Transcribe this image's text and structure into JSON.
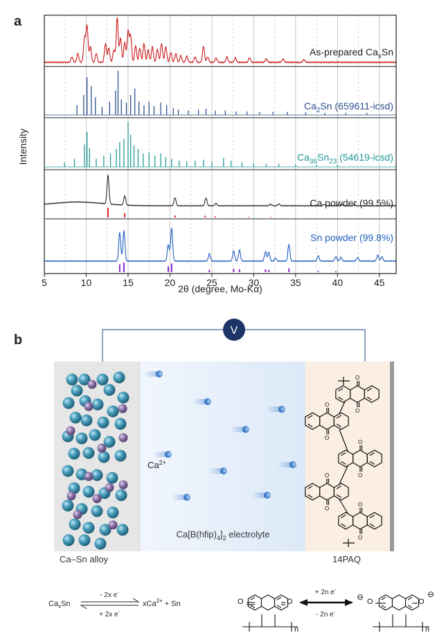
{
  "panel_a": {
    "letter": "a",
    "chart_data": {
      "type": "line",
      "xlabel": "2θ (degree, Mo-Kα)",
      "ylabel": "Intensity",
      "xlim": [
        5,
        47
      ],
      "xticks": [
        5,
        10,
        15,
        20,
        25,
        30,
        35,
        40,
        45
      ],
      "grid": "vertical gridlines every 2.5 degrees (solid at integers of 5, dashed between)",
      "series": [
        {
          "name": "As-prepared CaxSn",
          "label_main": "As-prepared Ca",
          "label_sub": "x",
          "label_tail": "Sn",
          "color": "#cc1b1b",
          "kind": "pattern",
          "peaks": [
            {
              "x": 8.3,
              "h": 0.12
            },
            {
              "x": 9.0,
              "h": 0.2
            },
            {
              "x": 9.8,
              "h": 0.55
            },
            {
              "x": 10.1,
              "h": 0.82
            },
            {
              "x": 10.5,
              "h": 0.35
            },
            {
              "x": 11.2,
              "h": 0.2
            },
            {
              "x": 12.3,
              "h": 0.42
            },
            {
              "x": 12.7,
              "h": 0.32
            },
            {
              "x": 13.3,
              "h": 0.28
            },
            {
              "x": 13.7,
              "h": 1.0
            },
            {
              "x": 14.1,
              "h": 0.55
            },
            {
              "x": 14.6,
              "h": 0.45
            },
            {
              "x": 15.0,
              "h": 0.7
            },
            {
              "x": 15.3,
              "h": 0.6
            },
            {
              "x": 15.9,
              "h": 0.38
            },
            {
              "x": 16.4,
              "h": 0.32
            },
            {
              "x": 16.9,
              "h": 0.42
            },
            {
              "x": 17.4,
              "h": 0.28
            },
            {
              "x": 17.9,
              "h": 0.35
            },
            {
              "x": 18.5,
              "h": 0.3
            },
            {
              "x": 19.0,
              "h": 0.42
            },
            {
              "x": 19.5,
              "h": 0.35
            },
            {
              "x": 20.1,
              "h": 0.22
            },
            {
              "x": 20.7,
              "h": 0.2
            },
            {
              "x": 21.3,
              "h": 0.15
            },
            {
              "x": 22.0,
              "h": 0.14
            },
            {
              "x": 23.0,
              "h": 0.12
            },
            {
              "x": 24.0,
              "h": 0.36
            },
            {
              "x": 24.5,
              "h": 0.12
            },
            {
              "x": 25.5,
              "h": 0.1
            },
            {
              "x": 26.8,
              "h": 0.12
            },
            {
              "x": 27.8,
              "h": 0.1
            },
            {
              "x": 29.5,
              "h": 0.1
            },
            {
              "x": 31.5,
              "h": 0.08
            },
            {
              "x": 33.5,
              "h": 0.08
            },
            {
              "x": 36.0,
              "h": 0.06
            }
          ]
        },
        {
          "name": "Ca2Sn (659611-icsd)",
          "label_main": "Ca",
          "label_sub": "2",
          "label_tail": "Sn (659611-icsd)",
          "color": "#2b4f8f",
          "kind": "sticks",
          "peaks": [
            {
              "x": 8.9,
              "h": 0.22
            },
            {
              "x": 9.7,
              "h": 0.45
            },
            {
              "x": 10.1,
              "h": 0.85
            },
            {
              "x": 10.6,
              "h": 0.65
            },
            {
              "x": 11.1,
              "h": 0.4
            },
            {
              "x": 11.9,
              "h": 0.18
            },
            {
              "x": 12.8,
              "h": 0.3
            },
            {
              "x": 13.5,
              "h": 0.55
            },
            {
              "x": 13.8,
              "h": 1.0
            },
            {
              "x": 14.2,
              "h": 0.35
            },
            {
              "x": 14.8,
              "h": 0.28
            },
            {
              "x": 15.3,
              "h": 0.45
            },
            {
              "x": 15.8,
              "h": 0.6
            },
            {
              "x": 16.3,
              "h": 0.3
            },
            {
              "x": 16.9,
              "h": 0.22
            },
            {
              "x": 17.5,
              "h": 0.3
            },
            {
              "x": 18.1,
              "h": 0.2
            },
            {
              "x": 18.9,
              "h": 0.28
            },
            {
              "x": 19.6,
              "h": 0.22
            },
            {
              "x": 20.4,
              "h": 0.15
            },
            {
              "x": 21.0,
              "h": 0.12
            },
            {
              "x": 22.2,
              "h": 0.1
            },
            {
              "x": 23.4,
              "h": 0.12
            },
            {
              "x": 24.3,
              "h": 0.14
            },
            {
              "x": 25.4,
              "h": 0.1
            },
            {
              "x": 26.6,
              "h": 0.1
            },
            {
              "x": 27.9,
              "h": 0.08
            },
            {
              "x": 29.2,
              "h": 0.08
            },
            {
              "x": 30.7,
              "h": 0.07
            },
            {
              "x": 32.3,
              "h": 0.07
            },
            {
              "x": 34.0,
              "h": 0.07
            },
            {
              "x": 36.2,
              "h": 0.06
            },
            {
              "x": 38.5,
              "h": 0.05
            },
            {
              "x": 41.0,
              "h": 0.05
            },
            {
              "x": 43.5,
              "h": 0.05
            }
          ]
        },
        {
          "name": "Ca36Sn23 (54619-icsd)",
          "label_main": "Ca",
          "label_sub": "36",
          "label_tail": "Sn",
          "label_sub2": "23",
          "label_tail2": " (54619-icsd)",
          "color": "#1f9a96",
          "kind": "sticks",
          "peaks": [
            {
              "x": 7.4,
              "h": 0.1
            },
            {
              "x": 8.6,
              "h": 0.18
            },
            {
              "x": 9.8,
              "h": 0.5
            },
            {
              "x": 10.1,
              "h": 0.78
            },
            {
              "x": 10.4,
              "h": 0.42
            },
            {
              "x": 11.2,
              "h": 0.18
            },
            {
              "x": 12.1,
              "h": 0.25
            },
            {
              "x": 12.9,
              "h": 0.3
            },
            {
              "x": 13.6,
              "h": 0.4
            },
            {
              "x": 14.0,
              "h": 0.55
            },
            {
              "x": 14.5,
              "h": 0.62
            },
            {
              "x": 15.0,
              "h": 1.0
            },
            {
              "x": 15.3,
              "h": 0.72
            },
            {
              "x": 15.7,
              "h": 0.48
            },
            {
              "x": 16.2,
              "h": 0.4
            },
            {
              "x": 16.8,
              "h": 0.3
            },
            {
              "x": 17.5,
              "h": 0.32
            },
            {
              "x": 18.2,
              "h": 0.25
            },
            {
              "x": 18.9,
              "h": 0.3
            },
            {
              "x": 19.5,
              "h": 0.22
            },
            {
              "x": 20.2,
              "h": 0.18
            },
            {
              "x": 21.1,
              "h": 0.14
            },
            {
              "x": 22.0,
              "h": 0.12
            },
            {
              "x": 23.0,
              "h": 0.14
            },
            {
              "x": 24.0,
              "h": 0.16
            },
            {
              "x": 25.0,
              "h": 0.12
            },
            {
              "x": 26.4,
              "h": 0.2
            },
            {
              "x": 27.3,
              "h": 0.14
            },
            {
              "x": 28.6,
              "h": 0.1
            },
            {
              "x": 30.0,
              "h": 0.08
            },
            {
              "x": 31.5,
              "h": 0.07
            },
            {
              "x": 33.0,
              "h": 0.07
            },
            {
              "x": 35.0,
              "h": 0.06
            },
            {
              "x": 37.5,
              "h": 0.05
            },
            {
              "x": 40.0,
              "h": 0.05
            }
          ]
        },
        {
          "name": "Ca powder (99.5%)",
          "label_main": "Ca powder (99.5%)",
          "color": "#2a2a2a",
          "kind": "pattern",
          "baseline_hump": true,
          "peaks": [
            {
              "x": 12.6,
              "h": 0.92
            },
            {
              "x": 14.6,
              "h": 0.3
            },
            {
              "x": 20.6,
              "h": 0.26
            },
            {
              "x": 24.3,
              "h": 0.25
            },
            {
              "x": 25.5,
              "h": 0.08
            },
            {
              "x": 32.0,
              "h": 0.05
            },
            {
              "x": 33.0,
              "h": 0.06
            },
            {
              "x": 38.4,
              "h": 0.04
            },
            {
              "x": 40.5,
              "h": 0.04
            },
            {
              "x": 42.0,
              "h": 0.04
            }
          ],
          "ref_color": "#e0201f",
          "ref_sticks": [
            {
              "x": 12.6,
              "h": 1.0
            },
            {
              "x": 14.6,
              "h": 0.45
            },
            {
              "x": 20.6,
              "h": 0.2
            },
            {
              "x": 24.2,
              "h": 0.18
            },
            {
              "x": 25.4,
              "h": 0.12
            },
            {
              "x": 29.4,
              "h": 0.06
            },
            {
              "x": 32.0,
              "h": 0.06
            }
          ]
        },
        {
          "name": "Sn powder (99.8%)",
          "label_main": "Sn powder (99.8%)",
          "color": "#1f5fbf",
          "kind": "pattern",
          "peaks": [
            {
              "x": 14.0,
              "h": 0.78
            },
            {
              "x": 14.5,
              "h": 0.82
            },
            {
              "x": 19.8,
              "h": 0.45
            },
            {
              "x": 20.2,
              "h": 0.9
            },
            {
              "x": 24.7,
              "h": 0.2
            },
            {
              "x": 27.6,
              "h": 0.28
            },
            {
              "x": 28.3,
              "h": 0.3
            },
            {
              "x": 31.4,
              "h": 0.26
            },
            {
              "x": 31.8,
              "h": 0.24
            },
            {
              "x": 32.6,
              "h": 0.08
            },
            {
              "x": 34.2,
              "h": 0.45
            },
            {
              "x": 37.7,
              "h": 0.14
            },
            {
              "x": 39.8,
              "h": 0.12
            },
            {
              "x": 40.4,
              "h": 0.1
            },
            {
              "x": 42.4,
              "h": 0.1
            },
            {
              "x": 44.8,
              "h": 0.16
            },
            {
              "x": 45.3,
              "h": 0.12
            }
          ],
          "ref_color": "#8a2ad0",
          "ref_sticks": [
            {
              "x": 14.0,
              "h": 0.8
            },
            {
              "x": 14.5,
              "h": 1.0
            },
            {
              "x": 19.8,
              "h": 0.6
            },
            {
              "x": 20.2,
              "h": 0.9
            },
            {
              "x": 24.7,
              "h": 0.25
            },
            {
              "x": 27.6,
              "h": 0.35
            },
            {
              "x": 28.3,
              "h": 0.3
            },
            {
              "x": 31.4,
              "h": 0.3
            },
            {
              "x": 31.8,
              "h": 0.25
            },
            {
              "x": 34.2,
              "h": 0.4
            },
            {
              "x": 37.7,
              "h": 0.12
            },
            {
              "x": 39.8,
              "h": 0.1
            }
          ]
        }
      ]
    }
  },
  "panel_b": {
    "letter": "b",
    "voltmeter_label": "V",
    "ion_label": "Ca",
    "ion_charge": "2+",
    "electrolyte_label_prefix": "Ca[B(hfip)",
    "electrolyte_label_sub": "4",
    "electrolyte_label_suffix": "]",
    "electrolyte_label_sub2": "2",
    "electrolyte_label_tail": " electrolyte",
    "anode_label": "Ca–Sn alloy",
    "cathode_label": "14PAQ",
    "colors": {
      "anode_bg": "#e6e6e6",
      "electrolyte_bg": "#eaf2fc",
      "cathode_bg": "#fbeee2",
      "ca_atom": "#3c8ca8",
      "sn_atom": "#8a74a6",
      "ion": "#3a78c8",
      "wire": "#5e7ea8",
      "voltmeter": "#1d3566"
    }
  },
  "reactions": {
    "left": {
      "reactant_main": "Ca",
      "reactant_sub": "x",
      "reactant_tail": "Sn",
      "top_arrow_label": "- 2x e",
      "top_arrow_sup": "-",
      "bottom_arrow_label": "+ 2x e",
      "bottom_arrow_sup": "-",
      "product_main": "xCa",
      "product_sup": "2+",
      "product_tail": " + Sn"
    },
    "right": {
      "top_arrow_label": "+ 2n e",
      "top_arrow_sup": "-",
      "bottom_arrow_label": "- 2n e",
      "bottom_arrow_sup": "-",
      "oxygen": "O",
      "anion_sign": "⊖",
      "subscript_n": "n"
    }
  }
}
